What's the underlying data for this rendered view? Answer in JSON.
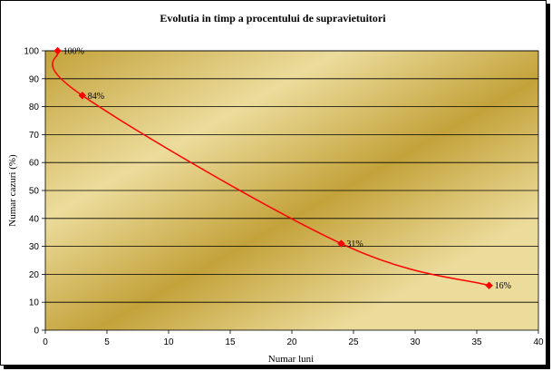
{
  "chart_data": {
    "type": "line",
    "title": "Evolutia in timp a procentului de supravietuitori",
    "xlabel": "Numar luni",
    "ylabel": "Numar cazuri (%)",
    "xlim": [
      0,
      40
    ],
    "ylim": [
      0,
      100
    ],
    "xticks": [
      0,
      5,
      10,
      15,
      20,
      25,
      30,
      35,
      40
    ],
    "yticks": [
      0,
      10,
      20,
      30,
      40,
      50,
      60,
      70,
      80,
      90,
      100
    ],
    "grid": "horizontal",
    "series": [
      {
        "x": [
          1,
          3,
          24,
          36
        ],
        "values": [
          100,
          84,
          31,
          16
        ],
        "labels": [
          "100%",
          "84%",
          "31%",
          "16%"
        ],
        "color": "#ff0000",
        "marker": "diamond",
        "smooth": true
      }
    ],
    "colors": {
      "plot_gradient_dark": "#c3a23a",
      "plot_gradient_light": "#ecdc9c",
      "gridline": "#000000"
    }
  }
}
